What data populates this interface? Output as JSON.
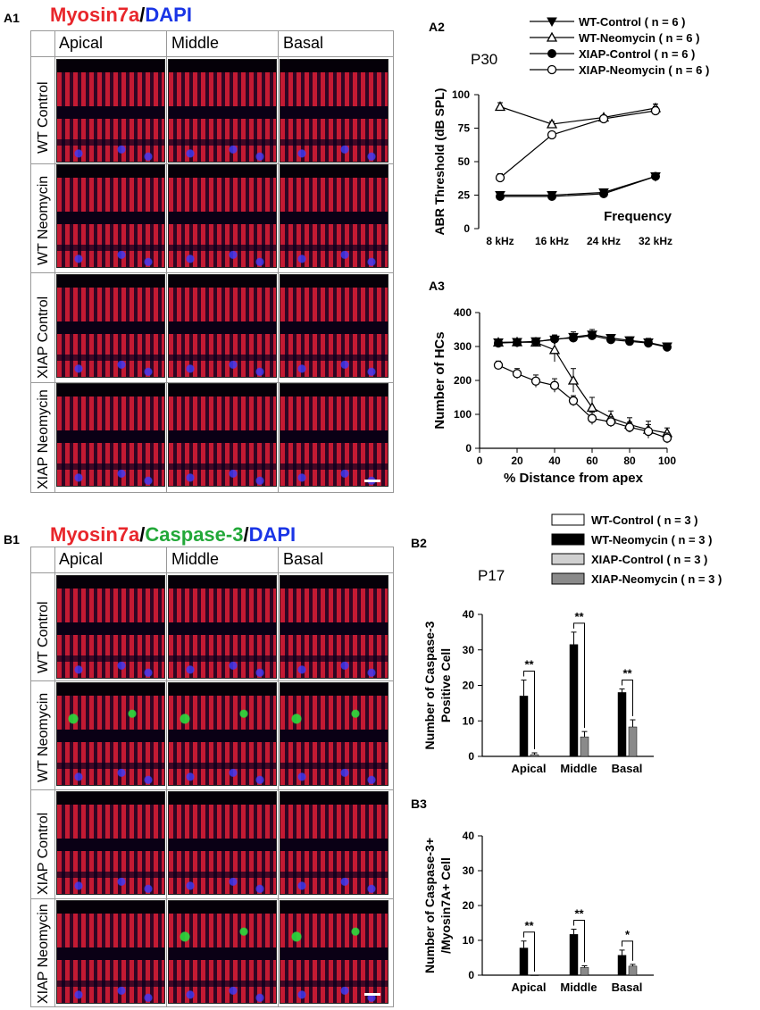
{
  "panelA1": {
    "letter": "A1",
    "title_parts": [
      {
        "text": "Myosin7a",
        "color": "#e8262b"
      },
      {
        "text": "/",
        "color": "#000000"
      },
      {
        "text": "DAPI",
        "color": "#1a35e6"
      }
    ],
    "columns": [
      "Apical",
      "Middle",
      "Basal"
    ],
    "rows": [
      "WT Control",
      "WT Neomycin",
      "XIAP Control",
      "XIAP Neomycin"
    ]
  },
  "panelB1": {
    "letter": "B1",
    "title_parts": [
      {
        "text": "Myosin7a",
        "color": "#e8262b"
      },
      {
        "text": "/",
        "color": "#000000"
      },
      {
        "text": "Caspase-3",
        "color": "#22a838"
      },
      {
        "text": "/",
        "color": "#000000"
      },
      {
        "text": "DAPI",
        "color": "#1a35e6"
      }
    ],
    "columns": [
      "Apical",
      "Middle",
      "Basal"
    ],
    "rows": [
      "WT Control",
      "WT Neomycin",
      "XIAP Control",
      "XIAP Neomycin"
    ]
  },
  "legendA": [
    {
      "label": "WT-Control ( n = 6 )",
      "marker": "filled-triangle-down"
    },
    {
      "label": "WT-Neomycin ( n = 6 )",
      "marker": "open-triangle-up"
    },
    {
      "label": "XIAP-Control ( n = 6 )",
      "marker": "filled-circle"
    },
    {
      "label": "XIAP-Neomycin ( n = 6 )",
      "marker": "open-circle"
    }
  ],
  "legendB": [
    {
      "label": "WT-Control ( n = 3 )",
      "fill": "#ffffff"
    },
    {
      "label": "WT-Neomycin ( n = 3 )",
      "fill": "#000000"
    },
    {
      "label": "XIAP-Control ( n = 3 )",
      "fill": "#d0d0d0"
    },
    {
      "label": "XIAP-Neomycin ( n = 3 )",
      "fill": "#8a8a8a"
    }
  ],
  "chart_data": [
    {
      "id": "A2",
      "type": "line",
      "annotation": "P30",
      "ylabel": "ABR Threshold (dB SPL)",
      "xlabel": "Frequency",
      "categories": [
        "8 kHz",
        "16 kHz",
        "24 kHz",
        "32 kHz"
      ],
      "ylim": [
        0,
        100
      ],
      "yticks": [
        0,
        25,
        50,
        75,
        100
      ],
      "series": [
        {
          "name": "WT-Control ( n = 6 )",
          "values": [
            25,
            25,
            27,
            39
          ],
          "err": [
            2,
            1.5,
            1.5,
            2
          ]
        },
        {
          "name": "WT-Neomycin ( n = 6 )",
          "values": [
            91,
            78,
            83,
            90
          ],
          "err": [
            3,
            2,
            1.5,
            3
          ]
        },
        {
          "name": "XIAP-Control ( n = 6 )",
          "values": [
            24,
            24,
            26,
            39
          ],
          "err": [
            1.5,
            1,
            1.5,
            2
          ]
        },
        {
          "name": "XIAP-Neomycin ( n = 6 )",
          "values": [
            38,
            70,
            82,
            88
          ],
          "err": [
            3,
            2,
            2,
            3
          ]
        }
      ]
    },
    {
      "id": "A3",
      "type": "line",
      "ylabel": "Number of HCs",
      "xlabel": "% Distance from apex",
      "xlim": [
        0,
        100
      ],
      "xticks": [
        0,
        20,
        40,
        60,
        80,
        100
      ],
      "ylim": [
        0,
        400
      ],
      "yticks": [
        0,
        100,
        200,
        300,
        400
      ],
      "x": [
        10,
        20,
        30,
        40,
        50,
        60,
        70,
        80,
        90,
        100
      ],
      "series": [
        {
          "name": "WT-Control ( n = 6 )",
          "values": [
            312,
            313,
            315,
            320,
            328,
            335,
            325,
            318,
            312,
            300
          ],
          "err": [
            10,
            8,
            8,
            12,
            15,
            15,
            10,
            10,
            12,
            10
          ]
        },
        {
          "name": "WT-Neomycin ( n = 6 )",
          "values": [
            312,
            313,
            312,
            290,
            200,
            120,
            90,
            70,
            55,
            45
          ],
          "err": [
            10,
            10,
            10,
            35,
            35,
            30,
            20,
            20,
            25,
            15
          ]
        },
        {
          "name": "XIAP-Control ( n = 6 )",
          "values": [
            310,
            312,
            314,
            322,
            325,
            332,
            320,
            315,
            310,
            298
          ],
          "err": [
            10,
            8,
            8,
            12,
            12,
            12,
            10,
            10,
            10,
            10
          ]
        },
        {
          "name": "XIAP-Neomycin ( n = 6 )",
          "values": [
            245,
            220,
            198,
            185,
            140,
            88,
            78,
            62,
            50,
            30
          ],
          "err": [
            12,
            15,
            18,
            20,
            15,
            18,
            15,
            15,
            20,
            15
          ]
        }
      ]
    },
    {
      "id": "B2",
      "type": "bar",
      "annotation": "P17",
      "ylabel": "Number of Caspase-3 Positive Cell",
      "ylabel_lines": [
        "Number of Caspase-3",
        "Positive Cell"
      ],
      "categories": [
        "Apical",
        "Middle",
        "Basal"
      ],
      "ylim": [
        0,
        40
      ],
      "yticks": [
        0,
        10,
        20,
        30,
        40
      ],
      "series": [
        {
          "name": "WT-Neomycin ( n = 3 )",
          "values": [
            17,
            31.5,
            18
          ],
          "err": [
            4.5,
            3.5,
            1
          ]
        },
        {
          "name": "XIAP-Neomycin ( n = 3 )",
          "values": [
            0.5,
            5.5,
            8.3
          ],
          "err": [
            0.5,
            1.5,
            2
          ]
        }
      ],
      "significance": [
        "**",
        "**",
        "**"
      ]
    },
    {
      "id": "B3",
      "type": "bar",
      "ylabel": "Number of Caspase-3+ /Myosin7A+ Cell",
      "ylabel_lines": [
        "Number of Caspase-3+",
        "/Myosin7A+ Cell"
      ],
      "categories": [
        "Apical",
        "Middle",
        "Basal"
      ],
      "ylim": [
        0,
        40
      ],
      "yticks": [
        0,
        10,
        20,
        30,
        40
      ],
      "series": [
        {
          "name": "WT-Neomycin ( n = 3 )",
          "values": [
            7.8,
            11.7,
            5.7
          ],
          "err": [
            2,
            1.5,
            1.5
          ]
        },
        {
          "name": "XIAP-Neomycin ( n = 3 )",
          "values": [
            0,
            2.2,
            2.6
          ],
          "err": [
            0,
            0.5,
            0.5
          ]
        }
      ],
      "significance": [
        "**",
        "**",
        "*"
      ]
    }
  ]
}
